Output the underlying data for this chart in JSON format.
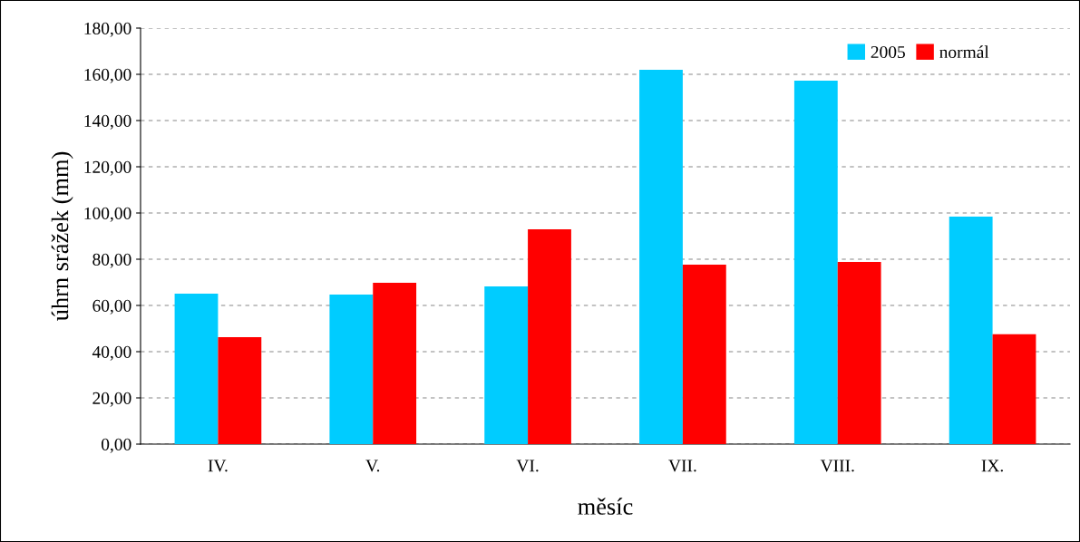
{
  "chart_data": {
    "type": "bar",
    "xlabel": "měsíc",
    "ylabel": "úhrn srážek (mm)",
    "categories": [
      "IV.",
      "V.",
      "VI.",
      "VII.",
      "VIII.",
      "IX."
    ],
    "series": [
      {
        "name": "2005",
        "color": "#00ccff",
        "values": [
          65.1,
          64.7,
          68.2,
          162.0,
          157.3,
          98.4
        ]
      },
      {
        "name": "normál",
        "color": "#ff0000",
        "values": [
          46.3,
          69.8,
          92.9,
          77.6,
          78.8,
          47.5
        ]
      }
    ],
    "ylim": [
      0,
      180
    ],
    "yticks": [
      {
        "value": 0,
        "label": "0,00"
      },
      {
        "value": 20,
        "label": "20,00"
      },
      {
        "value": 40,
        "label": "40,00"
      },
      {
        "value": 60,
        "label": "60,00"
      },
      {
        "value": 80,
        "label": "80,00"
      },
      {
        "value": 100,
        "label": "100,00"
      },
      {
        "value": 120,
        "label": "120,00"
      },
      {
        "value": 140,
        "label": "140,00"
      },
      {
        "value": 160,
        "label": "160,00"
      },
      {
        "value": 180,
        "label": "180,00"
      }
    ],
    "grid": "y",
    "legend": "top right"
  }
}
